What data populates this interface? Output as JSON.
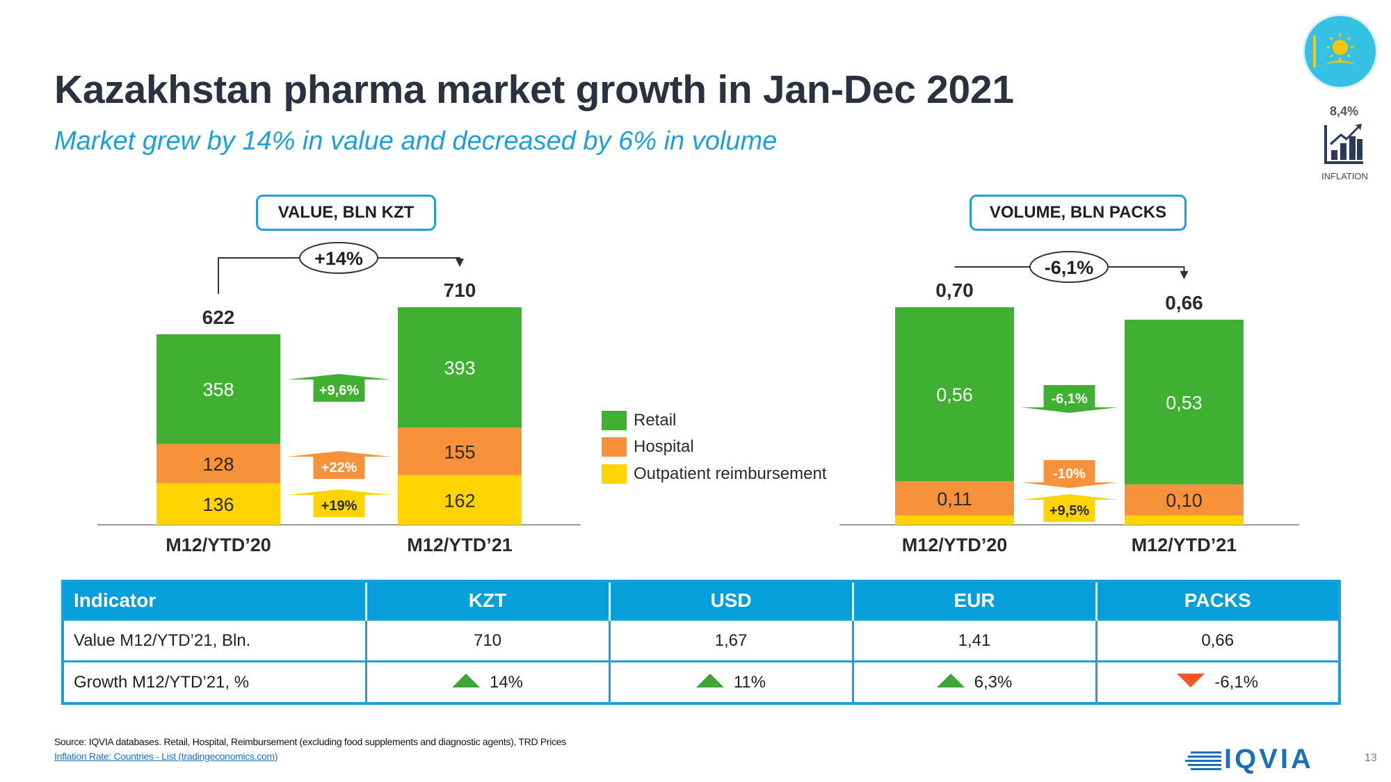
{
  "slide": {
    "title": "Kazakhstan pharma market growth in Jan-Dec 2021",
    "subtitle": "Market grew by 14% in value and decreased by 6% in volume",
    "page_number": "13",
    "source": "Source: IQVIA databases. Retail, Hospital, Reimbursement (excluding food supplements and diagnostic agents), TRD Prices",
    "source_link": "Inflation Rate: Countries - List (tradingeconomics.com)",
    "logo_text": "IQVIA"
  },
  "inflation": {
    "value": "8,4%",
    "label": "INFLATION",
    "icon": "bar-chart-growth-icon"
  },
  "flag": {
    "icon": "kazakhstan-flag-icon",
    "colors": {
      "sky": "#34c1e3",
      "sun": "#f6c60b"
    }
  },
  "legend": [
    {
      "label": "Retail",
      "color": "#3fb032"
    },
    {
      "label": "Hospital",
      "color": "#f7923a"
    },
    {
      "label": "Outpatient reimbursement",
      "color": "#ffd400"
    }
  ],
  "colors": {
    "retail": "#3fb032",
    "hospital": "#f7923a",
    "outpatient": "#ffd400",
    "accent": "#1aa1d9",
    "title": "#2a3140"
  },
  "chart_data": [
    {
      "type": "bar",
      "stacked": true,
      "title": "VALUE, BLN KZT",
      "categories": [
        "M12/YTD’20",
        "M12/YTD’21"
      ],
      "series": [
        {
          "name": "Outpatient reimbursement",
          "values": [
            136,
            162
          ],
          "labels": [
            "136",
            "162"
          ]
        },
        {
          "name": "Hospital",
          "values": [
            128,
            155
          ],
          "labels": [
            "128",
            "155"
          ]
        },
        {
          "name": "Retail",
          "values": [
            358,
            393
          ],
          "labels": [
            "358",
            "393"
          ]
        }
      ],
      "totals": [
        622,
        710
      ],
      "total_labels": [
        "622",
        "710"
      ],
      "total_growth": "+14%",
      "segment_growth": {
        "Retail": "+9,6%",
        "Hospital": "+22%",
        "Outpatient reimbursement": "+19%"
      },
      "ylim": [
        0,
        710
      ]
    },
    {
      "type": "bar",
      "stacked": true,
      "title": "VOLUME, BLN PACKS",
      "categories": [
        "M12/YTD’20",
        "M12/YTD’21"
      ],
      "series": [
        {
          "name": "Outpatient reimbursement",
          "values": [
            0.03,
            0.03
          ],
          "labels": [
            "",
            ""
          ]
        },
        {
          "name": "Hospital",
          "values": [
            0.11,
            0.1
          ],
          "labels": [
            "0,11",
            "0,10"
          ]
        },
        {
          "name": "Retail",
          "values": [
            0.56,
            0.53
          ],
          "labels": [
            "0,56",
            "0,53"
          ]
        }
      ],
      "totals": [
        0.7,
        0.66
      ],
      "total_labels": [
        "0,70",
        "0,66"
      ],
      "total_growth": "-6,1%",
      "segment_growth": {
        "Retail": "-6,1%",
        "Hospital": "-10%",
        "Outpatient reimbursement": "+9,5%"
      },
      "ylim": [
        0,
        0.7
      ]
    }
  ],
  "table": {
    "headers": [
      "Indicator",
      "KZT",
      "USD",
      "EUR",
      "PACKS"
    ],
    "rows": [
      {
        "label": "Value  M12/YTD’21, Bln.",
        "cells": [
          "710",
          "1,67",
          "1,41",
          "0,66"
        ]
      },
      {
        "label": "Growth  M12/YTD’21, %",
        "cells": [
          "14%",
          "11%",
          "6,3%",
          "-6,1%"
        ],
        "trend": [
          "up",
          "up",
          "up",
          "down"
        ]
      }
    ]
  }
}
